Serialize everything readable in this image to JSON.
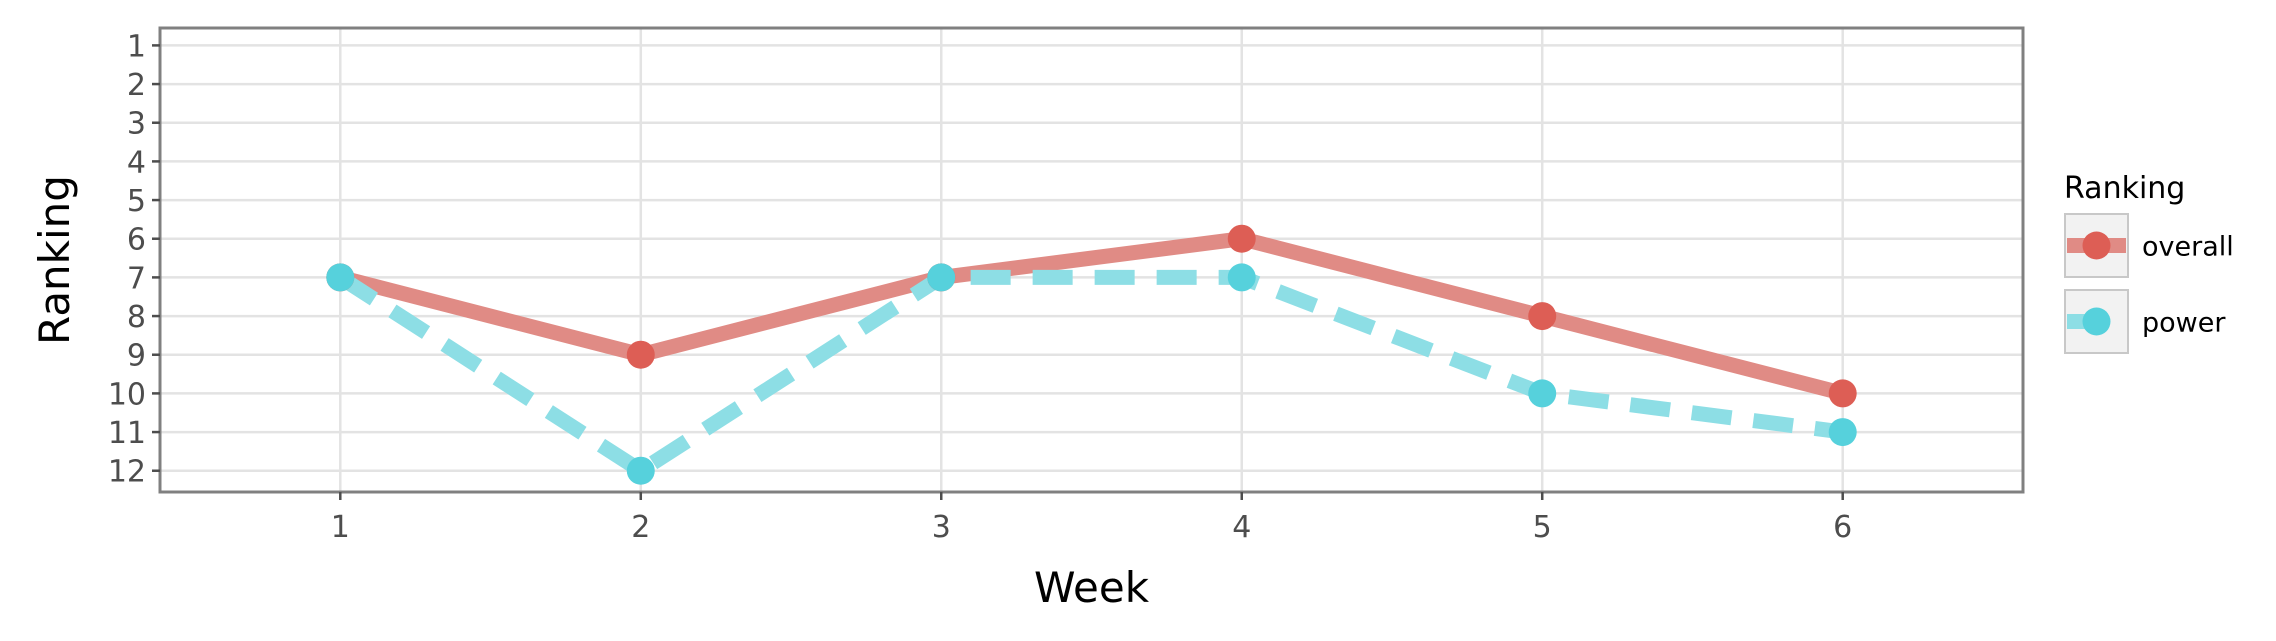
{
  "chart_data": {
    "type": "line",
    "xlabel": "Week",
    "ylabel": "Ranking",
    "x": [
      1,
      2,
      3,
      4,
      5,
      6
    ],
    "x_ticks": [
      "1",
      "2",
      "3",
      "4",
      "5",
      "6"
    ],
    "xlim": [
      0.4,
      6.6
    ],
    "ylim": [
      0.55,
      12.55
    ],
    "y_reversed": true,
    "y_ticks": [
      "1",
      "2",
      "3",
      "4",
      "5",
      "6",
      "7",
      "8",
      "9",
      "10",
      "11",
      "12"
    ],
    "grid": true,
    "legend": {
      "title": "Ranking",
      "placement": "right"
    },
    "series": [
      {
        "name": "overall",
        "values": [
          7,
          9,
          7,
          6,
          8,
          10
        ],
        "color": "#e08b85",
        "point_color": "#dd5e55",
        "dash": "solid"
      },
      {
        "name": "power",
        "values": [
          7,
          12,
          7,
          7,
          10,
          11
        ],
        "color": "#8ddee5",
        "point_color": "#56d1dc",
        "dash": "dashed"
      }
    ]
  }
}
